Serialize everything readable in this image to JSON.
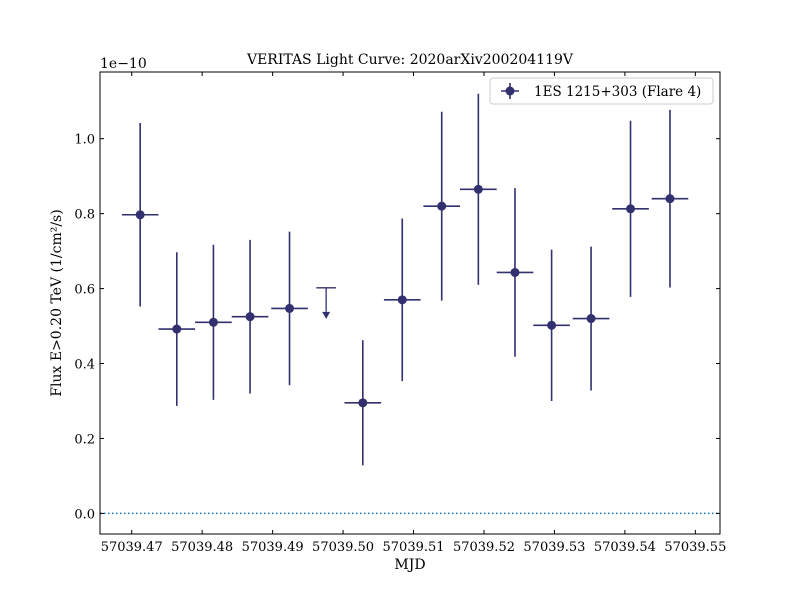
{
  "chart_data": {
    "type": "scatter",
    "title": "VERITAS Light Curve: 2020arXiv200204119V",
    "xlabel": "MJD",
    "ylabel": "Flux E>0.20 TeV (1/cm²/s)",
    "y_offset_label": "1e−10",
    "y_scale_factor": 1e-10,
    "xlim": [
      57039.4655,
      57039.5535
    ],
    "ylim": [
      -0.055,
      1.178
    ],
    "x_ticks": [
      57039.47,
      57039.48,
      57039.49,
      57039.5,
      57039.51,
      57039.52,
      57039.53,
      57039.54,
      57039.55
    ],
    "x_tick_labels": [
      "57039.47",
      "57039.48",
      "57039.49",
      "57039.50",
      "57039.51",
      "57039.52",
      "57039.53",
      "57039.54",
      "57039.55"
    ],
    "y_ticks": [
      0.0,
      0.2,
      0.4,
      0.6,
      0.8,
      1.0
    ],
    "y_tick_labels": [
      "0.0",
      "0.2",
      "0.4",
      "0.6",
      "0.8",
      "1.0"
    ],
    "reference_line": {
      "y": 0.0,
      "style": "dotted",
      "color": "#1f77b4"
    },
    "legend": {
      "position": "top-right",
      "entries": [
        "1ES 1215+303 (Flare 4)"
      ]
    },
    "color": "#32306e",
    "series": [
      {
        "name": "1ES 1215+303 (Flare 4)",
        "points": [
          {
            "x": 57039.4712,
            "x_err": 0.0026,
            "y": 0.797,
            "y_err": 0.245
          },
          {
            "x": 57039.4764,
            "x_err": 0.0026,
            "y": 0.492,
            "y_err": 0.205
          },
          {
            "x": 57039.4816,
            "x_err": 0.0026,
            "y": 0.51,
            "y_err": 0.207
          },
          {
            "x": 57039.4868,
            "x_err": 0.0026,
            "y": 0.525,
            "y_err": 0.205
          },
          {
            "x": 57039.4924,
            "x_err": 0.0026,
            "y": 0.547,
            "y_err": 0.205
          },
          {
            "x": 57039.5028,
            "x_err": 0.0026,
            "y": 0.295,
            "y_err": 0.167
          },
          {
            "x": 57039.5084,
            "x_err": 0.0026,
            "y": 0.57,
            "y_err": 0.217
          },
          {
            "x": 57039.514,
            "x_err": 0.0026,
            "y": 0.82,
            "y_err": 0.252
          },
          {
            "x": 57039.5192,
            "x_err": 0.0026,
            "y": 0.865,
            "y_err": 0.255
          },
          {
            "x": 57039.5244,
            "x_err": 0.0026,
            "y": 0.643,
            "y_err": 0.225
          },
          {
            "x": 57039.5296,
            "x_err": 0.0026,
            "y": 0.502,
            "y_err": 0.202
          },
          {
            "x": 57039.5352,
            "x_err": 0.0026,
            "y": 0.52,
            "y_err": 0.192
          },
          {
            "x": 57039.5408,
            "x_err": 0.0026,
            "y": 0.813,
            "y_err": 0.235
          },
          {
            "x": 57039.5464,
            "x_err": 0.0026,
            "y": 0.84,
            "y_err": 0.237
          }
        ],
        "upper_limits": [
          {
            "x": 57039.4976,
            "x_err": 0.0014,
            "y": 0.602
          }
        ]
      }
    ]
  }
}
